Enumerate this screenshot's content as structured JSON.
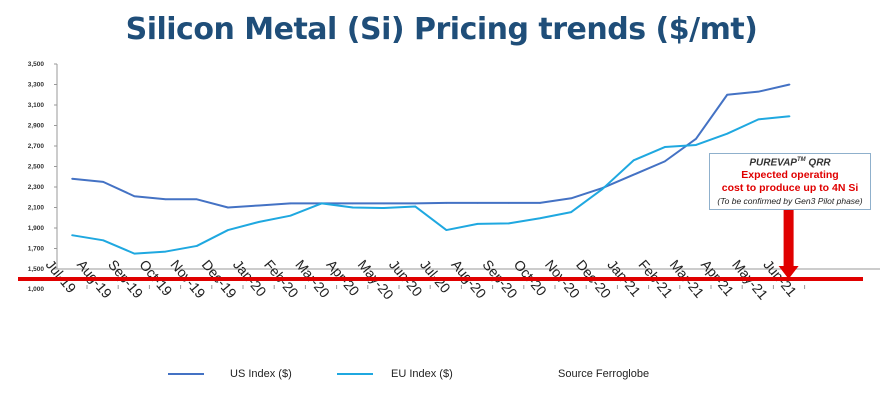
{
  "chart_data": {
    "type": "line",
    "title": "Silicon Metal (Si) Pricing trends ($/mt)",
    "xlabel": "",
    "ylabel": "",
    "ylim": [
      1500,
      3500
    ],
    "yticks": [
      "3,500",
      "3,300",
      "3,100",
      "2,900",
      "2,700",
      "2,500",
      "2,300",
      "2,100",
      "1,900",
      "1,700",
      "1,500"
    ],
    "ytick_values": [
      3500,
      3300,
      3100,
      2900,
      2700,
      2500,
      2300,
      2100,
      1900,
      1700,
      1500
    ],
    "axis_break_label": "1,000",
    "categories": [
      "Jul-19",
      "Aug-19",
      "Sep-19",
      "Oct-19",
      "Nov-19",
      "Dec-19",
      "Jan-20",
      "Feb-20",
      "Mar-20",
      "Apr-20",
      "May-20",
      "Jun-20",
      "Jul-20",
      "Aug-20",
      "Sep-20",
      "Oct-20",
      "Nov-20",
      "Dec-20",
      "Jan-21",
      "Feb-21",
      "Mar-21",
      "Apr-21",
      "May-21",
      "Jun-21"
    ],
    "series": [
      {
        "name": "US Index ($)",
        "color": "#4472c4",
        "values": [
          2380,
          2350,
          2210,
          2180,
          2180,
          2100,
          2120,
          2140,
          2140,
          2140,
          2140,
          2140,
          2145,
          2145,
          2145,
          2145,
          2190,
          2290,
          2420,
          2550,
          2770,
          3200,
          3230,
          3300
        ]
      },
      {
        "name": "EU Index ($)",
        "color": "#1fa8e0",
        "values": [
          1830,
          1780,
          1650,
          1670,
          1725,
          1880,
          1960,
          2020,
          2140,
          2100,
          2095,
          2110,
          1880,
          1940,
          1945,
          1995,
          2055,
          2280,
          2560,
          2690,
          2710,
          2820,
          2960,
          2990
        ]
      }
    ],
    "source": "Source Ferroglobe",
    "grid": false,
    "legend_position": "bottom",
    "annotation": {
      "heading": "PUREVAP",
      "heading_sup": "TM",
      "heading_suffix": " QRR",
      "line1": "Expected operating",
      "line2": "cost to produce up to 4N Si",
      "note": "(To be confirmed by Gen3 Pilot phase)",
      "target_category": "Jun-21",
      "color": "#e00000"
    }
  }
}
